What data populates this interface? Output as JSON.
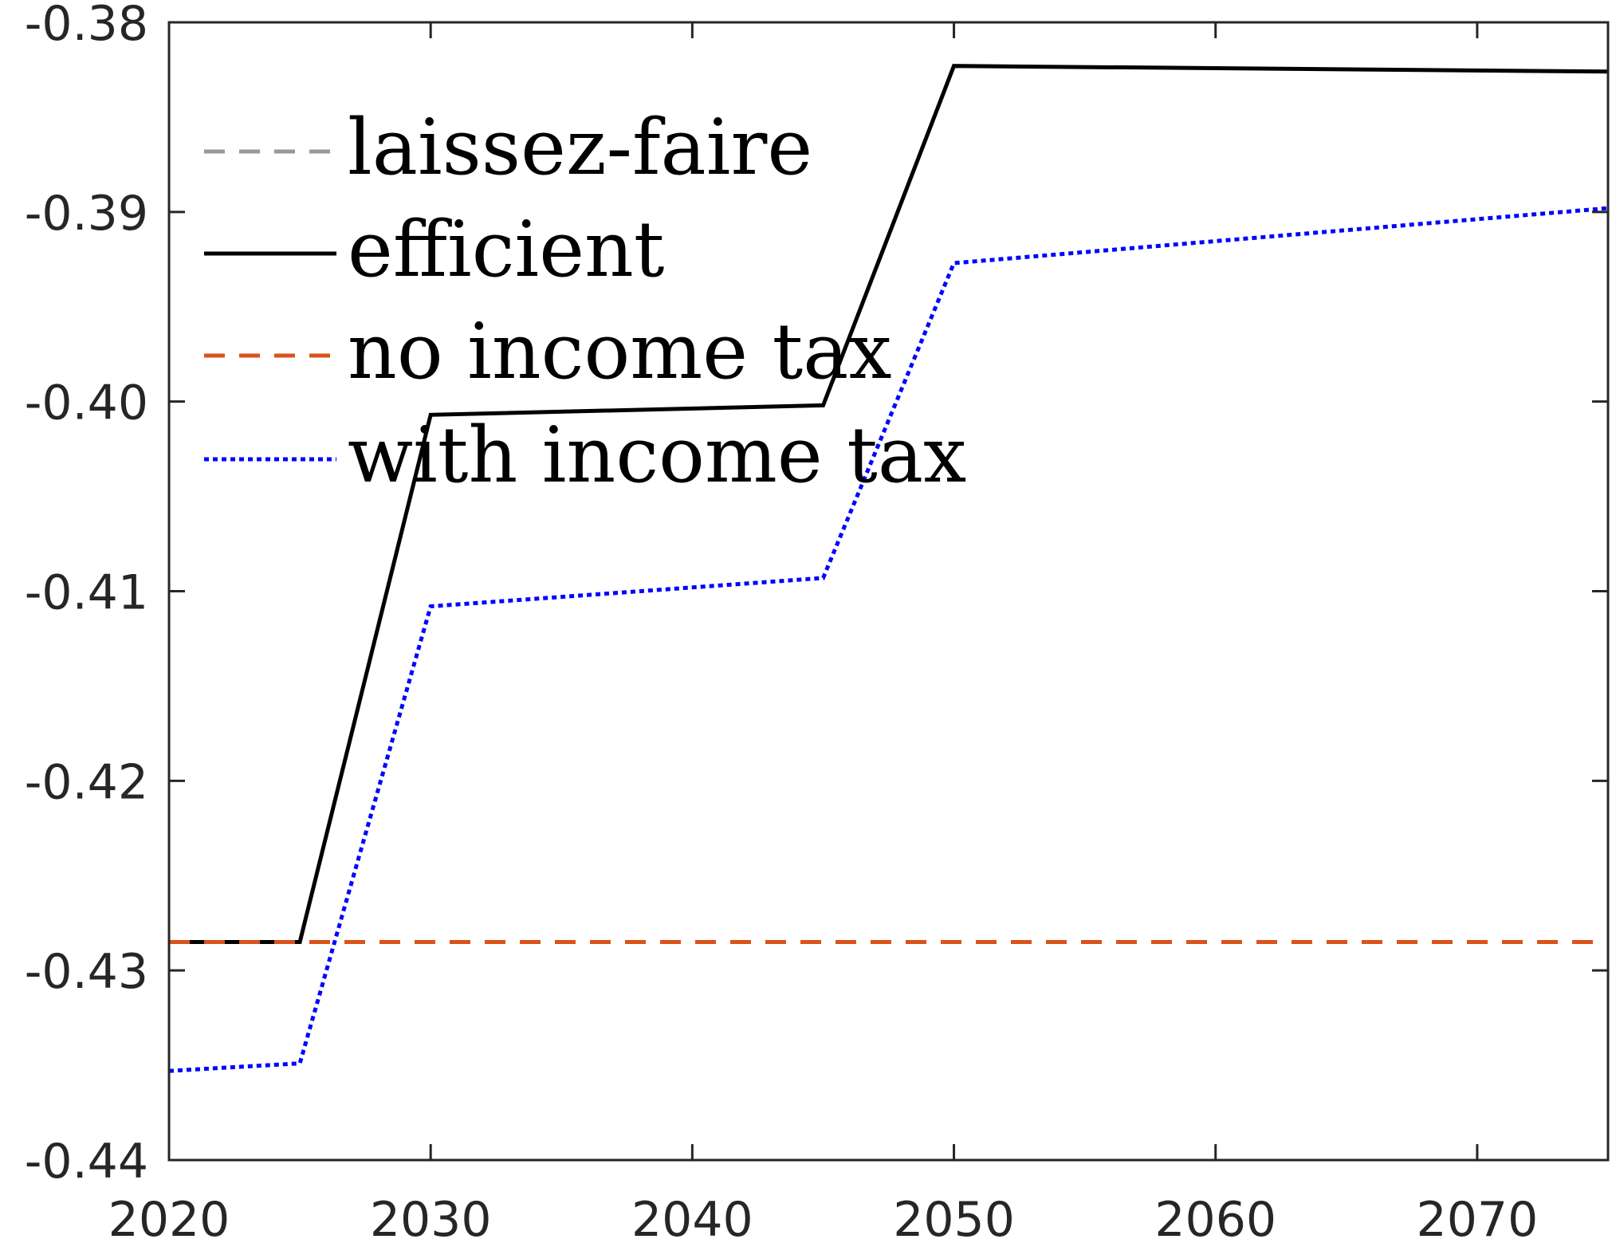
{
  "chart_data": {
    "type": "line",
    "title": "",
    "xlabel": "",
    "ylabel": "",
    "xlim": [
      2020,
      2075
    ],
    "ylim": [
      -0.44,
      -0.38
    ],
    "xticks": [
      2020,
      2030,
      2040,
      2050,
      2060,
      2070
    ],
    "xtick_labels": [
      "2020",
      "2030",
      "2040",
      "2050",
      "2060",
      "2070"
    ],
    "yticks": [
      -0.38,
      -0.39,
      -0.4,
      -0.41,
      -0.42,
      -0.43,
      -0.44
    ],
    "ytick_labels": [
      "-0.38",
      "-0.39",
      "-0.40",
      "-0.41",
      "-0.42",
      "-0.43",
      "-0.44"
    ],
    "grid": false,
    "legend_position": "top-left",
    "series": [
      {
        "name": "laissez-faire",
        "color": "#999999",
        "style": "dashed",
        "x": [
          2020,
          2075
        ],
        "y": [
          -0.4285,
          -0.4285
        ]
      },
      {
        "name": "efficient",
        "color": "#000000",
        "style": "solid",
        "x": [
          2020,
          2025,
          2030,
          2045,
          2050,
          2075
        ],
        "y": [
          -0.4285,
          -0.4285,
          -0.4007,
          -0.4002,
          -0.3823,
          -0.3826
        ]
      },
      {
        "name": "no income tax",
        "color": "#d95319",
        "style": "dashed",
        "x": [
          2020,
          2075
        ],
        "y": [
          -0.4285,
          -0.4285
        ]
      },
      {
        "name": "with income tax",
        "color": "#0000ff",
        "style": "dotted",
        "x": [
          2020,
          2025,
          2030,
          2045,
          2050,
          2075
        ],
        "y": [
          -0.4353,
          -0.4349,
          -0.4108,
          -0.4093,
          -0.3927,
          -0.3898
        ]
      }
    ]
  }
}
